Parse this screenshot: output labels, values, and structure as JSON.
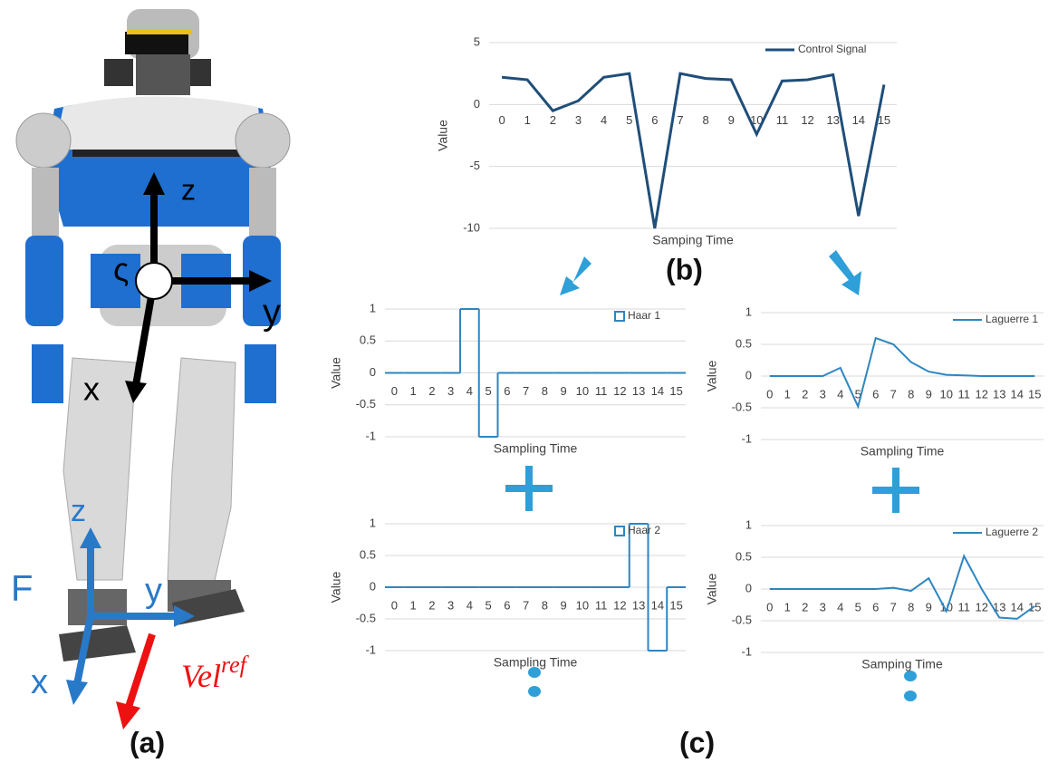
{
  "figure": {
    "panel_a": "(a)",
    "panel_b": "(b)",
    "panel_c": "(c)",
    "robot_axes": {
      "z": "z",
      "y": "y",
      "x": "x",
      "frame": "ς"
    },
    "foot_axes": {
      "frame": "F",
      "z": "z",
      "y": "y",
      "x": "x"
    },
    "velocity": "Vel",
    "velocity_sup": "ref"
  },
  "chart_data": [
    {
      "type": "line",
      "xlabel": "Samping Time",
      "ylabel": "Value",
      "categories": [
        "0",
        "1",
        "2",
        "3",
        "4",
        "5",
        "6",
        "7",
        "8",
        "9",
        "10",
        "11",
        "12",
        "13",
        "14",
        "15"
      ],
      "series": [
        {
          "name": "Control Signal",
          "color": "#1f4e79",
          "values": [
            2.2,
            2.0,
            -0.5,
            0.3,
            2.2,
            2.5,
            -10,
            2.5,
            2.1,
            2.0,
            -2.4,
            1.9,
            2.0,
            2.4,
            -9,
            1.6
          ]
        }
      ],
      "ylim": [
        -10,
        5
      ],
      "yticks": [
        -10,
        -5,
        0,
        5
      ],
      "grid": true,
      "legend": "upper right"
    },
    {
      "type": "line",
      "step": "mid",
      "xlabel": "Sampling Time",
      "ylabel": "Value",
      "categories": [
        "0",
        "1",
        "2",
        "3",
        "4",
        "5",
        "6",
        "7",
        "8",
        "9",
        "10",
        "11",
        "12",
        "13",
        "14",
        "15"
      ],
      "series": [
        {
          "name": "Haar 1",
          "color": "#2e86c1",
          "values": [
            0,
            0,
            0,
            0,
            1,
            -1,
            0,
            0,
            0,
            0,
            0,
            0,
            0,
            0,
            0,
            0
          ]
        }
      ],
      "ylim": [
        -1,
        1
      ],
      "yticks": [
        -1,
        -0.5,
        0,
        0.5,
        1
      ],
      "grid": true,
      "legend": "upper right"
    },
    {
      "type": "line",
      "xlabel": "Sampling Time",
      "ylabel": "Value",
      "categories": [
        "0",
        "1",
        "2",
        "3",
        "4",
        "5",
        "6",
        "7",
        "8",
        "9",
        "10",
        "11",
        "12",
        "13",
        "14",
        "15"
      ],
      "series": [
        {
          "name": "Laguerre 1",
          "color": "#2e86c1",
          "values": [
            0,
            0,
            0,
            0,
            0.13,
            -0.48,
            0.6,
            0.5,
            0.22,
            0.07,
            0.02,
            0.01,
            0,
            0,
            0,
            0
          ]
        }
      ],
      "ylim": [
        -1,
        1
      ],
      "yticks": [
        -1,
        -0.5,
        0,
        0.5,
        1
      ],
      "grid": true,
      "legend": "upper right"
    },
    {
      "type": "line",
      "step": "mid",
      "xlabel": "Sampling Time",
      "ylabel": "Value",
      "categories": [
        "0",
        "1",
        "2",
        "3",
        "4",
        "5",
        "6",
        "7",
        "8",
        "9",
        "10",
        "11",
        "12",
        "13",
        "14",
        "15"
      ],
      "series": [
        {
          "name": "Haar 2",
          "color": "#2e86c1",
          "values": [
            0,
            0,
            0,
            0,
            0,
            0,
            0,
            0,
            0,
            0,
            0,
            0,
            0,
            1,
            -1,
            0
          ]
        }
      ],
      "ylim": [
        -1,
        1
      ],
      "yticks": [
        -1,
        -0.5,
        0,
        0.5,
        1
      ],
      "grid": true,
      "legend": "upper right"
    },
    {
      "type": "line",
      "xlabel": "Samping Time",
      "ylabel": "Value",
      "categories": [
        "0",
        "1",
        "2",
        "3",
        "4",
        "5",
        "6",
        "7",
        "8",
        "9",
        "10",
        "11",
        "12",
        "13",
        "14",
        "15"
      ],
      "series": [
        {
          "name": "Laguerre 2",
          "color": "#2e86c1",
          "values": [
            0,
            0,
            0,
            0,
            0,
            0,
            0,
            0.02,
            -0.03,
            0.17,
            -0.35,
            0.52,
            0,
            -0.45,
            -0.47,
            -0.27
          ]
        }
      ],
      "ylim": [
        -1,
        1
      ],
      "yticks": [
        -1,
        -0.5,
        0,
        0.5,
        1
      ],
      "grid": true,
      "legend": "upper right"
    }
  ]
}
